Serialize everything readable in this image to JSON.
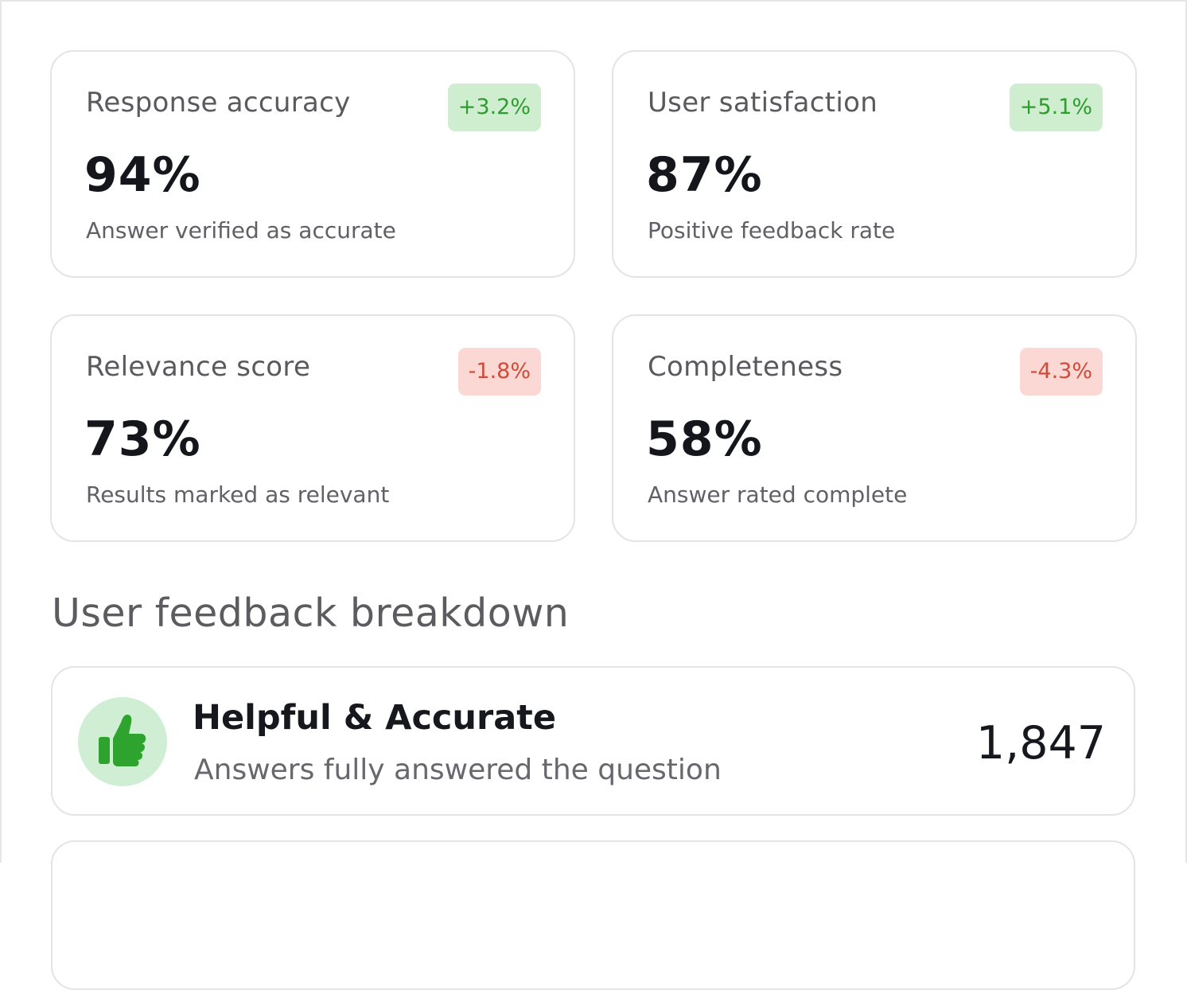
{
  "metrics": [
    {
      "title": "Response accuracy",
      "value": "94%",
      "description": "Answer verified as accurate",
      "delta": "+3.2%",
      "trend": "up"
    },
    {
      "title": "User satisfaction",
      "value": "87%",
      "description": "Positive feedback rate",
      "delta": "+5.1%",
      "trend": "up"
    },
    {
      "title": "Relevance score",
      "value": "73%",
      "description": "Results marked as relevant",
      "delta": "-1.8%",
      "trend": "down"
    },
    {
      "title": "Completeness",
      "value": "58%",
      "description": "Answer rated complete",
      "delta": "-4.3%",
      "trend": "down"
    }
  ],
  "feedback_section": {
    "heading": "User feedback breakdown",
    "items": [
      {
        "icon": "thumbs-up-icon",
        "title": "Helpful & Accurate",
        "description": "Answers fully answered the question",
        "count": "1,847"
      }
    ]
  },
  "colors": {
    "positive_badge_bg": "#cfeecf",
    "positive_badge_text": "#2e9c2e",
    "negative_badge_bg": "#fbd8d3",
    "negative_badge_text": "#cf4b3a",
    "thumbs_up_icon": "#2ea32e",
    "thumbs_up_circle": "#cfeed3"
  }
}
